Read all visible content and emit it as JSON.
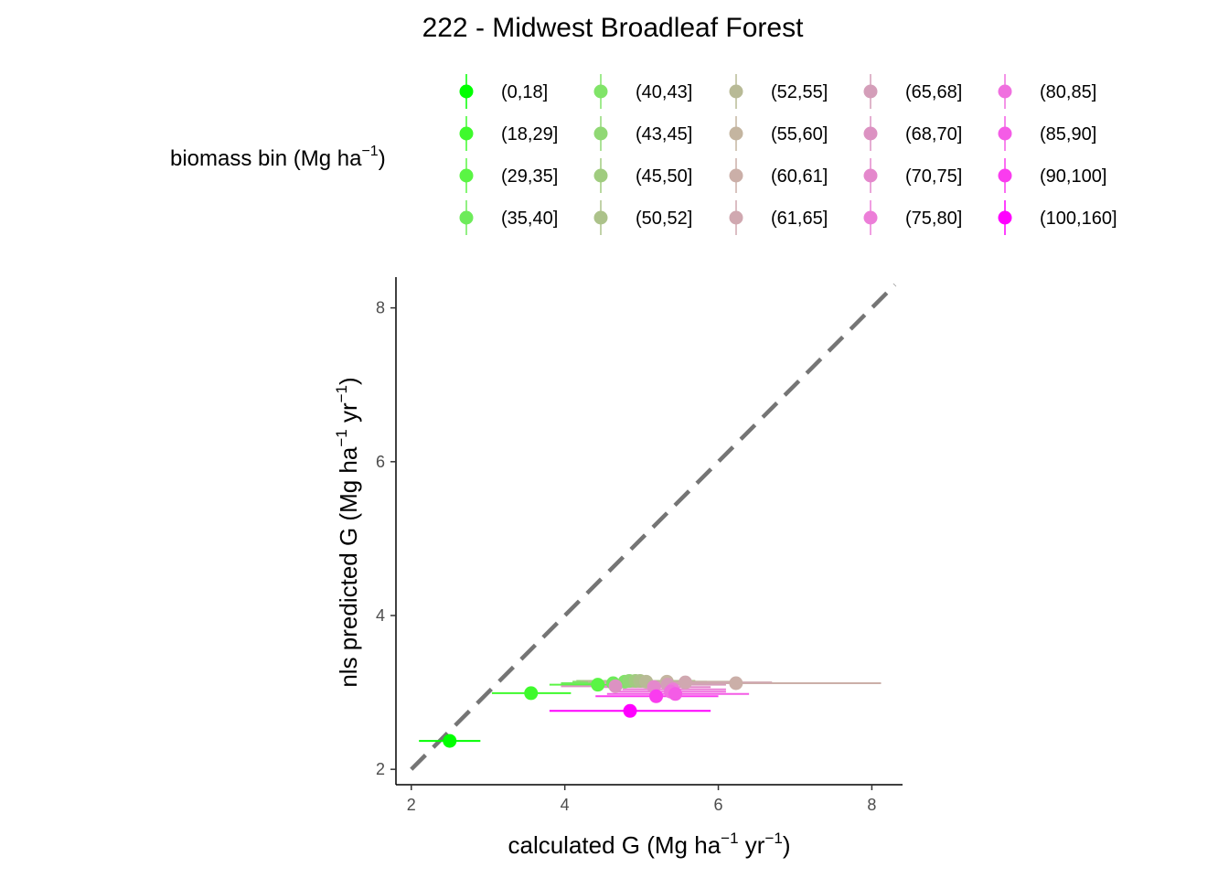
{
  "chart_data": {
    "type": "scatter",
    "title": "222 - Midwest Broadleaf Forest",
    "xlabel": {
      "parts": [
        "calculated G (Mg ha",
        "−1",
        " yr",
        "−1",
        ")"
      ]
    },
    "ylabel": {
      "parts": [
        "nls predicted G (Mg ha",
        "−1",
        " yr",
        "−1",
        ")"
      ]
    },
    "xlim": [
      1.8,
      8.4
    ],
    "ylim": [
      1.8,
      8.4
    ],
    "xticks": [
      2,
      4,
      6,
      8
    ],
    "yticks": [
      2,
      4,
      6,
      8
    ],
    "reference_line": {
      "type": "1:1",
      "style": "dashed",
      "color": "#757575"
    },
    "legend": {
      "title_parts": [
        "biomass bin (Mg ha",
        "−1",
        ")"
      ],
      "position": "top",
      "columns": 5
    },
    "series": [
      {
        "name": "(0,18]",
        "color": "#00FF00",
        "x": 2.5,
        "y": 2.37,
        "xmin": 2.1,
        "xmax": 2.9
      },
      {
        "name": "(18,29]",
        "color": "#3EFA2C",
        "x": 3.56,
        "y": 2.99,
        "xmin": 3.05,
        "xmax": 4.08
      },
      {
        "name": "(29,35]",
        "color": "#5AF544",
        "x": 4.43,
        "y": 3.1,
        "xmin": 3.8,
        "xmax": 5.1
      },
      {
        "name": "(35,40]",
        "color": "#6DEB5A",
        "x": 4.63,
        "y": 3.12,
        "xmin": 3.95,
        "xmax": 5.3
      },
      {
        "name": "(40,43]",
        "color": "#80E468",
        "x": 4.78,
        "y": 3.14,
        "xmin": 4.1,
        "xmax": 5.45
      },
      {
        "name": "(43,45]",
        "color": "#90D874",
        "x": 4.84,
        "y": 3.15,
        "xmin": 4.15,
        "xmax": 5.55
      },
      {
        "name": "(45,50]",
        "color": "#A0CC7F",
        "x": 4.92,
        "y": 3.15,
        "xmin": 4.2,
        "xmax": 5.65
      },
      {
        "name": "(50,52]",
        "color": "#ACC28A",
        "x": 4.98,
        "y": 3.15,
        "xmin": 4.25,
        "xmax": 5.7
      },
      {
        "name": "(52,55]",
        "color": "#B8BA96",
        "x": 5.06,
        "y": 3.14,
        "xmin": 4.3,
        "xmax": 5.85
      },
      {
        "name": "(55,60]",
        "color": "#C4B5A0",
        "x": 5.33,
        "y": 3.14,
        "xmin": 4.4,
        "xmax": 6.3
      },
      {
        "name": "(60,61]",
        "color": "#CBAFA8",
        "x": 6.23,
        "y": 3.12,
        "xmin": 4.35,
        "xmax": 8.12
      },
      {
        "name": "(61,65]",
        "color": "#D0A8B0",
        "x": 5.57,
        "y": 3.13,
        "xmin": 4.45,
        "xmax": 6.7
      },
      {
        "name": "(65,68]",
        "color": "#D49EB9",
        "x": 5.34,
        "y": 3.1,
        "xmin": 4.6,
        "xmax": 6.1
      },
      {
        "name": "(68,70]",
        "color": "#DC92C2",
        "x": 4.66,
        "y": 3.08,
        "xmin": 3.95,
        "xmax": 5.4
      },
      {
        "name": "(70,75]",
        "color": "#E488CC",
        "x": 5.16,
        "y": 3.07,
        "xmin": 4.45,
        "xmax": 5.9
      },
      {
        "name": "(75,80]",
        "color": "#EC7ED8",
        "x": 5.41,
        "y": 3.04,
        "xmin": 4.75,
        "xmax": 6.1
      },
      {
        "name": "(80,85]",
        "color": "#F070DF",
        "x": 5.38,
        "y": 3.01,
        "xmin": 4.65,
        "xmax": 6.1
      },
      {
        "name": "(85,90]",
        "color": "#F45CE6",
        "x": 5.44,
        "y": 2.98,
        "xmin": 4.55,
        "xmax": 6.4
      },
      {
        "name": "(90,100]",
        "color": "#FA3CEF",
        "x": 5.19,
        "y": 2.95,
        "xmin": 4.4,
        "xmax": 6.0
      },
      {
        "name": "(100,160]",
        "color": "#FF00FF",
        "x": 4.85,
        "y": 2.76,
        "xmin": 3.8,
        "xmax": 5.9
      }
    ]
  }
}
